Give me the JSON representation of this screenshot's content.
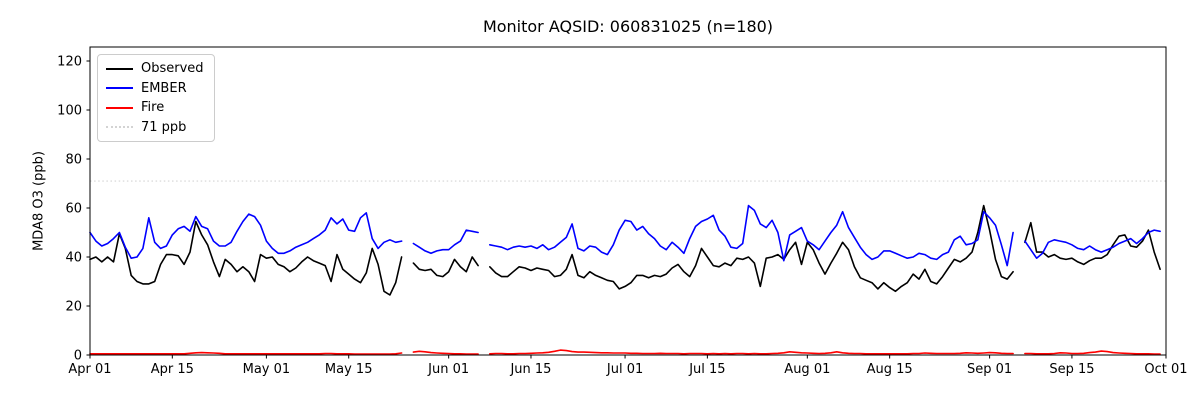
{
  "chart": {
    "title": "Monitor AQSID: 060831025 (n=180)",
    "ylabel": "MDA8 O3 (ppb)",
    "colors": {
      "observed": "#000000",
      "ember": "#0000ff",
      "fire": "#ff0000",
      "threshold": "#d3d3d3",
      "axis": "#000000",
      "background": "#ffffff"
    }
  },
  "legend": {
    "items": [
      {
        "label": "Observed",
        "color": "#000000",
        "style": "solid"
      },
      {
        "label": "EMBER",
        "color": "#0000ff",
        "style": "solid"
      },
      {
        "label": "Fire",
        "color": "#ff0000",
        "style": "solid"
      },
      {
        "label": "71 ppb",
        "color": "#d3d3d3",
        "style": "dotted"
      }
    ]
  },
  "chart_data": {
    "type": "line",
    "title": "Monitor AQSID: 060831025 (n=180)",
    "xlabel": "",
    "ylabel": "MDA8 O3 (ppb)",
    "n_points": 180,
    "x_unit": "day offset from Apr 01",
    "x_range_days": 183,
    "ylim": [
      0,
      125.7
    ],
    "yticks": [
      0,
      20,
      40,
      60,
      80,
      100,
      120
    ],
    "xticks": [
      {
        "label": "Apr 01",
        "day": 0
      },
      {
        "label": "Apr 15",
        "day": 14
      },
      {
        "label": "May 01",
        "day": 30
      },
      {
        "label": "May 15",
        "day": 44
      },
      {
        "label": "Jun 01",
        "day": 61
      },
      {
        "label": "Jun 15",
        "day": 75
      },
      {
        "label": "Jul 01",
        "day": 91
      },
      {
        "label": "Jul 15",
        "day": 105
      },
      {
        "label": "Aug 01",
        "day": 122
      },
      {
        "label": "Aug 15",
        "day": 136
      },
      {
        "label": "Sep 01",
        "day": 153
      },
      {
        "label": "Sep 15",
        "day": 167
      },
      {
        "label": "Oct 01",
        "day": 183
      }
    ],
    "threshold": {
      "value": 71,
      "label": "71 ppb",
      "color": "#d3d3d3",
      "linestyle": "dotted"
    },
    "missing_days": [
      "May 25",
      "Jun 07",
      "Sep 06"
    ],
    "legend_position": "upper left",
    "grid": false,
    "series": [
      {
        "name": "Observed",
        "color": "#000000",
        "values": [
          39,
          40,
          38,
          40,
          38,
          49.5,
          43.5,
          32.5,
          30,
          29,
          29,
          30,
          37,
          41,
          41,
          40.5,
          37,
          42,
          54.5,
          49,
          45,
          38,
          32,
          39,
          37,
          34,
          36,
          34,
          30,
          41,
          39.5,
          40,
          37,
          36,
          34,
          35.5,
          38,
          40,
          38.5,
          37.5,
          36.5,
          30,
          41,
          35,
          33,
          31,
          29.5,
          33.5,
          43.5,
          37,
          26,
          24.5,
          29.5,
          40,
          null,
          37.5,
          35,
          34.5,
          35,
          32.5,
          32,
          34,
          39,
          36,
          34,
          40,
          36.5,
          null,
          36,
          33.5,
          32,
          32,
          34,
          36,
          35.5,
          34.5,
          35.5,
          35,
          34.5,
          32,
          32.5,
          35,
          41,
          32.5,
          31.5,
          34,
          32.5,
          31.5,
          30.5,
          30,
          27,
          28,
          29.5,
          32.5,
          32.5,
          31.5,
          32.5,
          32,
          33,
          35.5,
          37,
          34,
          32,
          36.5,
          43.5,
          40,
          36.5,
          36,
          37.5,
          36.5,
          39.5,
          39,
          40,
          37.5,
          28,
          39.5,
          40,
          41,
          39,
          43,
          46,
          37,
          46,
          43,
          37.5,
          33,
          37.5,
          41.5,
          46,
          43,
          36,
          31.5,
          30.5,
          29.5,
          27,
          29.5,
          27.5,
          26,
          28,
          29.5,
          33,
          31,
          35,
          30,
          29,
          32,
          35.5,
          39,
          38,
          39.5,
          42,
          50,
          61,
          51,
          39,
          32,
          31,
          34,
          null,
          46,
          54,
          42,
          42,
          40,
          41,
          39.5,
          39,
          39.5,
          38,
          37,
          38.5,
          39.5,
          39.5,
          41,
          45,
          48.5,
          49,
          44.5,
          44,
          46.5,
          51,
          42,
          35
        ]
      },
      {
        "name": "EMBER",
        "color": "#0000ff",
        "values": [
          50,
          46.5,
          44.5,
          45.5,
          47.5,
          50,
          44,
          39.5,
          40,
          43.5,
          56,
          46,
          43.5,
          44.5,
          49,
          51.5,
          52.5,
          50.5,
          56.5,
          52.5,
          51.5,
          46.5,
          44.5,
          44.5,
          46,
          50.5,
          54.5,
          57.5,
          56.5,
          53,
          46.5,
          43.5,
          41.5,
          41.5,
          42.5,
          44,
          45,
          46,
          47.5,
          49,
          51,
          56,
          53.5,
          55.5,
          51,
          50.5,
          56,
          58,
          47.5,
          43.5,
          46,
          47,
          46,
          46.5,
          null,
          45.5,
          44,
          42.5,
          41.5,
          42.5,
          43,
          43,
          45,
          46.5,
          51,
          50.5,
          50,
          null,
          45,
          44.5,
          44,
          43,
          44,
          44.5,
          44,
          44.5,
          43.5,
          45,
          43,
          44,
          46,
          48,
          53.5,
          43.5,
          42.5,
          44.5,
          44,
          42,
          41,
          45,
          51,
          55,
          54.5,
          51,
          52.5,
          49.5,
          47.5,
          44.5,
          43,
          46,
          44,
          41.5,
          47.5,
          52.5,
          54.5,
          55.5,
          57,
          51,
          48.5,
          44,
          43.5,
          45.5,
          61,
          59,
          53.5,
          52,
          55,
          50,
          38.5,
          49,
          50.5,
          52,
          46.5,
          45,
          43,
          46.5,
          50,
          53,
          58.5,
          52,
          48,
          44,
          41,
          39,
          40,
          42.5,
          42.5,
          41.5,
          40.5,
          39.5,
          40,
          41.5,
          41,
          39.5,
          39,
          41,
          42,
          47,
          48.5,
          45,
          45.5,
          47,
          58.5,
          56,
          53,
          45,
          36.5,
          50,
          null,
          46.5,
          43,
          39.5,
          41.5,
          46,
          47,
          46.5,
          46,
          45,
          43.5,
          43,
          44.5,
          43,
          42,
          43,
          44,
          45.5,
          46.5,
          47.5,
          45.5,
          47.5,
          50,
          51,
          50.5
        ]
      },
      {
        "name": "Fire",
        "color": "#ff0000",
        "values": [
          0.5,
          0.5,
          0.5,
          0.5,
          0.5,
          0.5,
          0.5,
          0.5,
          0.5,
          0.5,
          0.5,
          0.5,
          0.5,
          0.5,
          0.5,
          0.5,
          0.5,
          0.7,
          0.9,
          1,
          0.9,
          0.8,
          0.7,
          0.5,
          0.5,
          0.5,
          0.5,
          0.5,
          0.5,
          0.5,
          0.5,
          0.5,
          0.5,
          0.5,
          0.5,
          0.5,
          0.5,
          0.5,
          0.5,
          0.5,
          0.6,
          0.6,
          0.5,
          0.5,
          0.5,
          0.4,
          0.4,
          0.4,
          0.4,
          0.4,
          0.4,
          0.4,
          0.5,
          0.8,
          null,
          1.2,
          1.5,
          1.3,
          1,
          0.8,
          0.7,
          0.6,
          0.5,
          0.5,
          0.4,
          0.4,
          0.4,
          null,
          0.5,
          0.6,
          0.6,
          0.5,
          0.5,
          0.6,
          0.6,
          0.7,
          0.8,
          0.9,
          1.1,
          1.5,
          2,
          1.8,
          1.4,
          1.2,
          1.2,
          1.1,
          1,
          0.9,
          0.9,
          0.8,
          0.8,
          0.8,
          0.7,
          0.7,
          0.6,
          0.6,
          0.6,
          0.7,
          0.6,
          0.6,
          0.6,
          0.5,
          0.6,
          0.6,
          0.6,
          0.5,
          0.6,
          0.5,
          0.6,
          0.5,
          0.6,
          0.6,
          0.5,
          0.6,
          0.5,
          0.5,
          0.6,
          0.7,
          0.9,
          1.3,
          1.1,
          0.9,
          0.8,
          0.7,
          0.6,
          0.7,
          0.9,
          1.3,
          0.9,
          0.7,
          0.6,
          0.6,
          0.5,
          0.5,
          0.5,
          0.5,
          0.5,
          0.5,
          0.5,
          0.5,
          0.6,
          0.6,
          0.8,
          0.7,
          0.6,
          0.6,
          0.6,
          0.6,
          0.7,
          0.9,
          0.8,
          0.7,
          0.8,
          1,
          0.9,
          0.7,
          0.6,
          0.6,
          null,
          0.6,
          0.6,
          0.5,
          0.5,
          0.5,
          0.6,
          0.9,
          0.8,
          0.6,
          0.6,
          0.7,
          1,
          1.2,
          1.6,
          1.4,
          1,
          0.8,
          0.7,
          0.6,
          0.5,
          0.5,
          0.5,
          0.4,
          0.4
        ]
      }
    ]
  }
}
